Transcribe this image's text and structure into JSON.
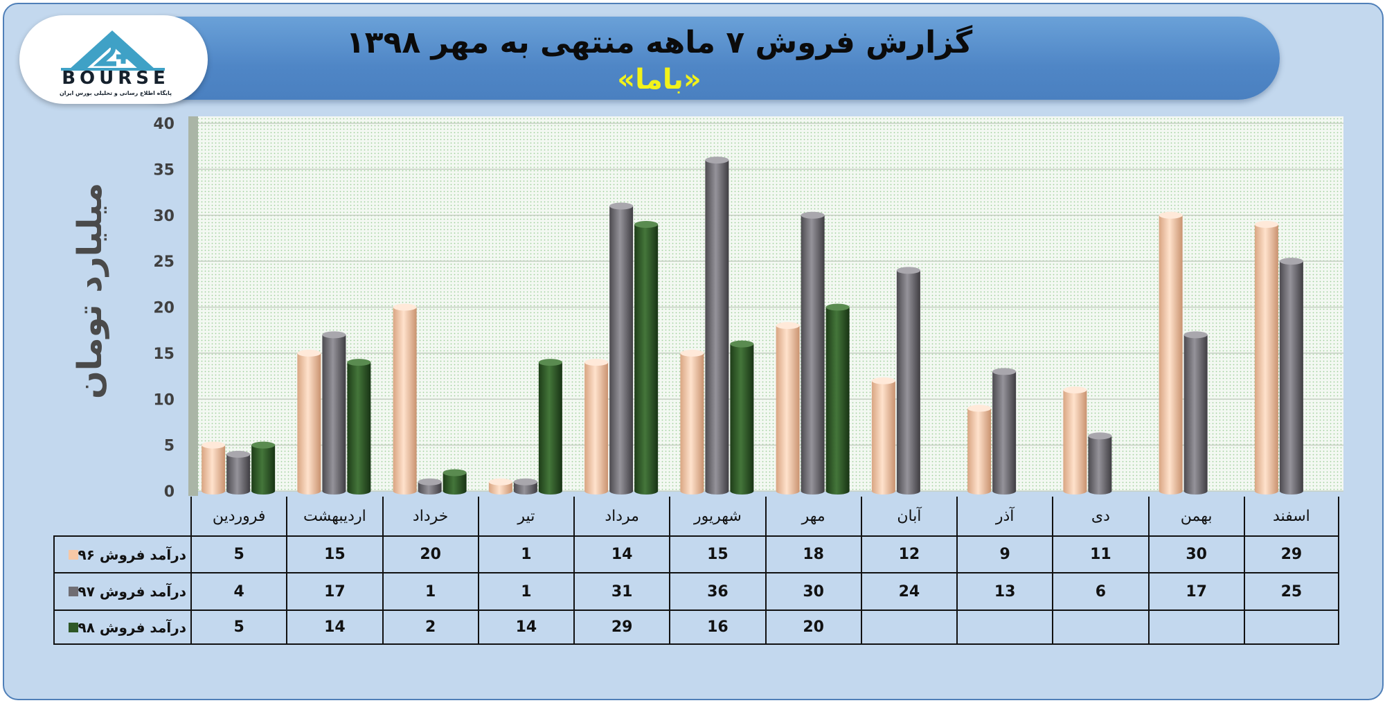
{
  "header": {
    "title": "گزارش فروش ۷ ماهه منتهی به مهر ۱۳۹۸",
    "subtitle": "«باما»"
  },
  "logo": {
    "wordmark": "BOURSE",
    "caption": "پایگاه اطلاع رسانی و تحلیلی بورس ایران",
    "icon": "bourse-24-logo-icon"
  },
  "chart_data": {
    "type": "bar",
    "title": "",
    "ylabel": "میلیارد تومان",
    "xlabel": "",
    "ylim": [
      0,
      40
    ],
    "yticks": [
      0,
      5,
      10,
      15,
      20,
      25,
      30,
      35,
      40
    ],
    "grid": true,
    "legend": "table-left",
    "categories": [
      "فروردین",
      "اردیبهشت",
      "خرداد",
      "تیر",
      "مرداد",
      "شهریور",
      "مهر",
      "آبان",
      "آذر",
      "دی",
      "بهمن",
      "اسفند"
    ],
    "series": [
      {
        "name": "درآمد فروش ۹۶",
        "color": "#f7c8a6",
        "values": [
          5,
          15,
          20,
          1,
          14,
          15,
          18,
          12,
          9,
          11,
          30,
          29
        ]
      },
      {
        "name": "درآمد فروش ۹۷",
        "color": "#6f6d73",
        "values": [
          4,
          17,
          1,
          1,
          31,
          36,
          30,
          24,
          13,
          6,
          17,
          25
        ]
      },
      {
        "name": "درآمد فروش ۹۸",
        "color": "#2e5726",
        "values": [
          5,
          14,
          2,
          14,
          29,
          16,
          20,
          null,
          null,
          null,
          null,
          null
        ]
      }
    ]
  }
}
